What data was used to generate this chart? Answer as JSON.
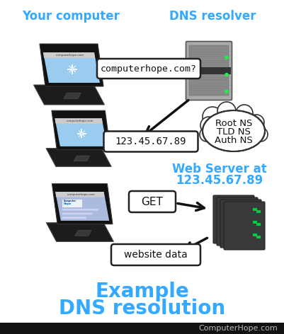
{
  "background_color": "#ffffff",
  "title_line1": "Example",
  "title_line2": "DNS resolution",
  "title_color": "#33aaff",
  "title_fontsize": 20,
  "label_your_computer": "Your computer",
  "label_dns_resolver": "DNS resolver",
  "label_web_server_line1": "Web Server at",
  "label_web_server_line2": "123.45.67.89",
  "label_color": "#33aaff",
  "label_fontsize": 12,
  "bubble_query": "computerhope.com?",
  "bubble_ip": "123.45.67.89",
  "bubble_get": "GET",
  "bubble_data": "website data",
  "bubble_fontsize": 10,
  "cloud_lines": [
    "Root NS",
    "TLD NS",
    "Auth NS"
  ],
  "cloud_fontsize": 9.5,
  "footer_text": "ComputerHope.com",
  "footer_color": "#aaaaaa",
  "footer_fontsize": 8,
  "arrow_color": "#111111"
}
